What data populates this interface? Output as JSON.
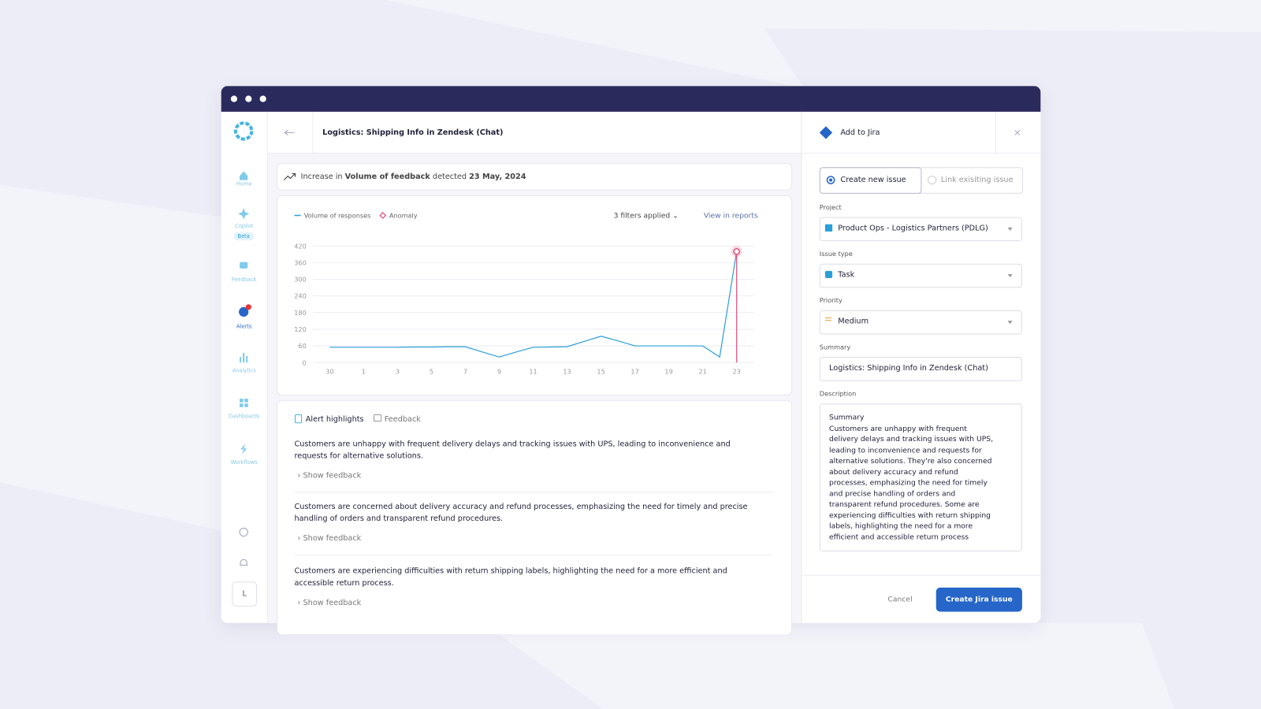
{
  "sidebar": {
    "items": [
      {
        "label": "Home"
      },
      {
        "label": "Copilot",
        "badge": "Beta"
      },
      {
        "label": "Feedback"
      },
      {
        "label": "Alerts"
      },
      {
        "label": "Analytics"
      },
      {
        "label": "Dashboards"
      },
      {
        "label": "Workflows"
      }
    ],
    "avatar": "L"
  },
  "header": {
    "title": "Logistics: Shipping Info in Zendesk (Chat)"
  },
  "alert_banner": {
    "prefix": "Increase in",
    "metric": "Volume of feedback",
    "verb": "detected",
    "date": "23 May, 2024"
  },
  "chart_toolbar": {
    "filters": "3 filters applied",
    "link": "View in reports"
  },
  "chart_data": {
    "type": "line",
    "categories": [
      "30",
      null,
      "1",
      null,
      "3",
      null,
      "5",
      null,
      "7",
      null,
      "9",
      null,
      "11",
      null,
      "13",
      null,
      "15",
      null,
      "17",
      null,
      "19",
      null,
      "21",
      null,
      "23"
    ],
    "series": [
      {
        "name": "Volume of responses",
        "color": "#2a9fd8",
        "values": [
          55,
          55,
          55,
          55,
          55,
          56,
          56,
          57,
          57,
          38,
          20,
          38,
          55,
          56,
          57,
          76,
          95,
          78,
          60,
          60,
          60,
          60,
          60,
          20,
          400
        ]
      }
    ],
    "anomaly": {
      "name": "Anomaly",
      "color": "#e0507a",
      "category": "23"
    },
    "ylim": [
      0,
      420
    ],
    "yticks": [
      0,
      60,
      120,
      180,
      240,
      300,
      360,
      420
    ],
    "grid": true
  },
  "highlights": {
    "tabs": [
      "Alert highlights",
      "Feedback"
    ],
    "items": [
      {
        "text": "Customers are unhappy with frequent delivery delays and tracking issues with UPS, leading to inconvenience and requests for alternative solutions.",
        "action": "Show feedback"
      },
      {
        "text": "Customers are concerned about delivery accuracy and refund processes, emphasizing the need for timely and precise handling of orders and transparent refund procedures.",
        "action": "Show feedback"
      },
      {
        "text": "Customers are experiencing difficulties with return shipping labels, highlighting the need for a more efficient and accessible return process.",
        "action": "Show feedback"
      }
    ]
  },
  "jira_panel": {
    "title": "Add to Jira",
    "options": [
      "Create new issue",
      "Link exisiting issue"
    ],
    "fields": [
      {
        "label": "Project",
        "value": "Product Ops - Logistics Partners (PDLG)"
      },
      {
        "label": "Issue type",
        "value": "Task"
      },
      {
        "label": "Priority",
        "value": "Medium"
      },
      {
        "label": "Summary",
        "value": "Logistics: Shipping Info in Zendesk (Chat)"
      }
    ],
    "description_label": "Description",
    "description": "Summary\nCustomers are unhappy with frequent delivery delays and tracking issues with UPS, leading to inconvenience and requests for alternative solutions. They're also concerned about delivery accuracy and refund processes, emphasizing the need for timely and precise handling of orders and transparent refund procedures. Some are experiencing difficulties with return shipping labels, highlighting the need for a more efficient and accessible return process",
    "cancel": "Cancel",
    "submit": "Create Jira issue"
  }
}
